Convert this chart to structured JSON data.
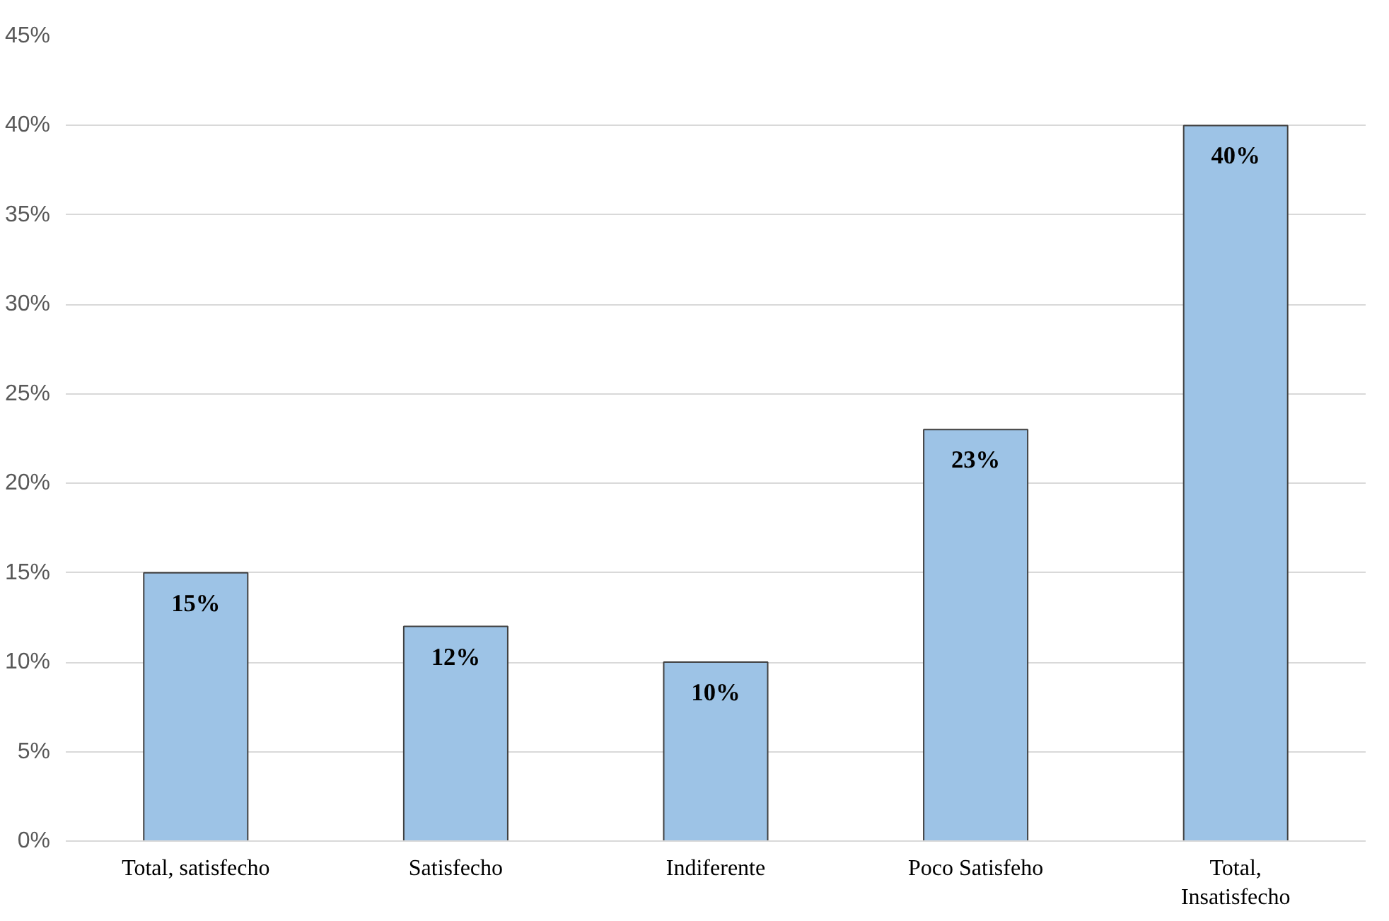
{
  "chart_data": {
    "type": "bar",
    "categories": [
      "Total, satisfecho",
      "Satisfecho",
      "Indiferente",
      "Poco Satisfeho",
      "Total, Insatisfecho"
    ],
    "values": [
      15,
      12,
      10,
      23,
      40
    ],
    "value_labels": [
      "15%",
      "12%",
      "10%",
      "23%",
      "40%"
    ],
    "color": "#9dc3e6",
    "ylim": [
      0,
      45
    ],
    "yticks": [
      {
        "value": 0,
        "label": "0%"
      },
      {
        "value": 5,
        "label": "5%"
      },
      {
        "value": 10,
        "label": "10%"
      },
      {
        "value": 15,
        "label": "15%"
      },
      {
        "value": 20,
        "label": "20%"
      },
      {
        "value": 25,
        "label": "25%"
      },
      {
        "value": 30,
        "label": "30%"
      },
      {
        "value": 35,
        "label": "35%"
      },
      {
        "value": 40,
        "label": "40%"
      },
      {
        "value": 45,
        "label": "45%"
      }
    ],
    "grid": "y"
  }
}
